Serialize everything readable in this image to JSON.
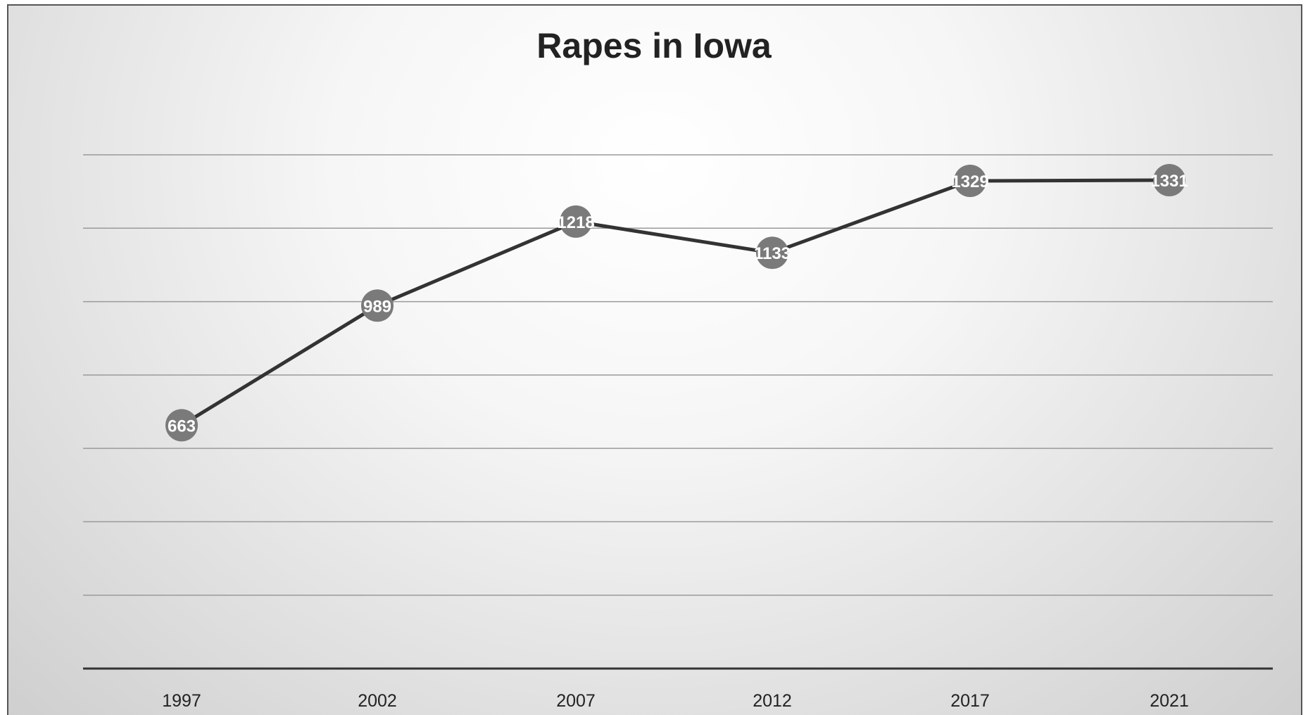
{
  "chart_data": {
    "type": "line",
    "title": "Rapes in Iowa",
    "categories": [
      "1997",
      "2002",
      "2007",
      "2012",
      "2017",
      "2021"
    ],
    "series": [
      {
        "values": [
          663,
          989,
          1218,
          1133,
          1329,
          1331
        ],
        "color": "#333333",
        "marker_color": "#7a7a7a"
      }
    ],
    "data_labels": [
      "663",
      "989",
      "1218",
      "1133",
      "1329",
      "1331"
    ],
    "ylim": [
      0,
      1400
    ],
    "y_gridlines": [
      200,
      400,
      600,
      800,
      1000,
      1200,
      1400
    ],
    "grid": true,
    "xlabel": "",
    "ylabel": "",
    "legend": "none"
  }
}
